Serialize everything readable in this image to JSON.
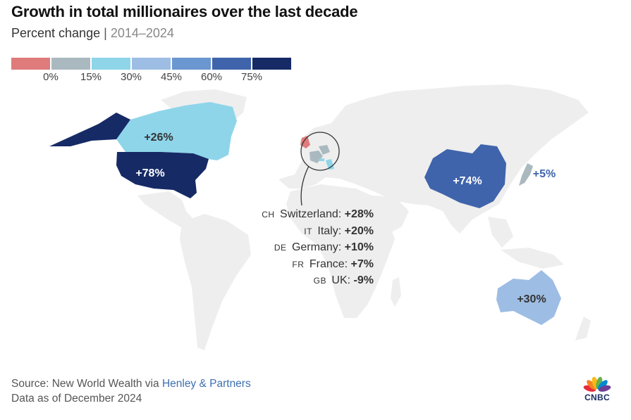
{
  "header": {
    "title": "Growth in total millionaires over the last decade",
    "subtitle_main": "Percent change",
    "subtitle_separator": "|",
    "subtitle_range": "2014–2024"
  },
  "legend": {
    "colors": [
      "#df7b7b",
      "#aab9bf",
      "#8ed5ea",
      "#9dbde4",
      "#6b97d0",
      "#3f64ab",
      "#162a66"
    ],
    "ticks": [
      "0%",
      "15%",
      "30%",
      "45%",
      "60%",
      "75%"
    ]
  },
  "regions": [
    {
      "name": "Canada",
      "value": 26,
      "label": "+26%",
      "color": "#8ed5ea"
    },
    {
      "name": "United States",
      "value": 78,
      "label": "+78%",
      "color": "#162a66"
    },
    {
      "name": "China",
      "value": 74,
      "label": "+74%",
      "color": "#3f64ab"
    },
    {
      "name": "Japan",
      "value": 5,
      "label": "+5%",
      "color": "#aab9bf"
    },
    {
      "name": "Australia",
      "value": 30,
      "label": "+30%",
      "color": "#9dbde4"
    }
  ],
  "callout": {
    "items": [
      {
        "code": "CH",
        "country": "Switzerland",
        "label": "+28%",
        "value": 28
      },
      {
        "code": "IT",
        "country": "Italy",
        "label": "+20%",
        "value": 20
      },
      {
        "code": "DE",
        "country": "Germany",
        "label": "+10%",
        "value": 10
      },
      {
        "code": "FR",
        "country": "France",
        "label": "+7%",
        "value": 7
      },
      {
        "code": "GB",
        "country": "UK",
        "label": "-9%",
        "value": -9
      }
    ]
  },
  "source": {
    "prefix": "Source: New World Wealth via ",
    "link": "Henley & Partners",
    "date": "Data as of December 2024"
  },
  "logo": {
    "text": "CNBC",
    "petal_colors": [
      "#e8293b",
      "#f58220",
      "#fcb813",
      "#66b14d",
      "#0089cf",
      "#6c3f97"
    ]
  }
}
